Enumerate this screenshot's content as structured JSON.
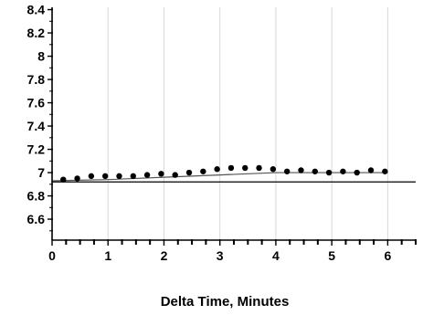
{
  "chart_data": {
    "type": "scatter",
    "title": "",
    "xlabel": "Delta Time, Minutes",
    "ylabel": "",
    "xlim": [
      0,
      6.5
    ],
    "ylim": [
      6.42,
      8.42
    ],
    "grid": "vertical",
    "x_ticks": [
      0,
      1,
      2,
      3,
      4,
      5,
      6
    ],
    "x_tick_labels": [
      "0",
      "1",
      "2",
      "3",
      "4",
      "5",
      "6"
    ],
    "y_ticks": [
      6.6,
      6.8,
      7.0,
      7.2,
      7.4,
      7.6,
      7.8,
      8.0,
      8.2,
      8.4
    ],
    "y_tick_labels": [
      "6.6",
      "6.8",
      "7",
      "7.2",
      "7.4",
      "7.6",
      "7.8",
      "8",
      "8.2",
      "8.4"
    ],
    "reference_line_y": 6.92,
    "series": [
      {
        "points": [
          {
            "x": 0.2,
            "y": 6.94
          },
          {
            "x": 0.45,
            "y": 6.95
          },
          {
            "x": 0.7,
            "y": 6.97
          },
          {
            "x": 0.95,
            "y": 6.97
          },
          {
            "x": 1.2,
            "y": 6.97
          },
          {
            "x": 1.45,
            "y": 6.97
          },
          {
            "x": 1.7,
            "y": 6.98
          },
          {
            "x": 1.95,
            "y": 6.99
          },
          {
            "x": 2.2,
            "y": 6.98
          },
          {
            "x": 2.45,
            "y": 7.0
          },
          {
            "x": 2.7,
            "y": 7.01
          },
          {
            "x": 2.95,
            "y": 7.03
          },
          {
            "x": 3.2,
            "y": 7.04
          },
          {
            "x": 3.45,
            "y": 7.04
          },
          {
            "x": 3.7,
            "y": 7.04
          },
          {
            "x": 3.95,
            "y": 7.03
          },
          {
            "x": 4.2,
            "y": 7.01
          },
          {
            "x": 4.45,
            "y": 7.02
          },
          {
            "x": 4.7,
            "y": 7.01
          },
          {
            "x": 4.95,
            "y": 7.0
          },
          {
            "x": 5.2,
            "y": 7.01
          },
          {
            "x": 5.45,
            "y": 7.0
          },
          {
            "x": 5.7,
            "y": 7.02
          },
          {
            "x": 5.95,
            "y": 7.01
          }
        ]
      }
    ],
    "trend_line": [
      {
        "x": 0,
        "y": 6.93
      },
      {
        "x": 1,
        "y": 6.94
      },
      {
        "x": 2,
        "y": 6.96
      },
      {
        "x": 3,
        "y": 6.98
      },
      {
        "x": 4,
        "y": 7.0
      },
      {
        "x": 5,
        "y": 7.0
      },
      {
        "x": 6,
        "y": 7.0
      }
    ],
    "colors": {
      "points": "#000000",
      "trend_line": "#555555",
      "reference_line": "#000000",
      "grid": "#d8d8d8",
      "axis": "#000000"
    }
  }
}
